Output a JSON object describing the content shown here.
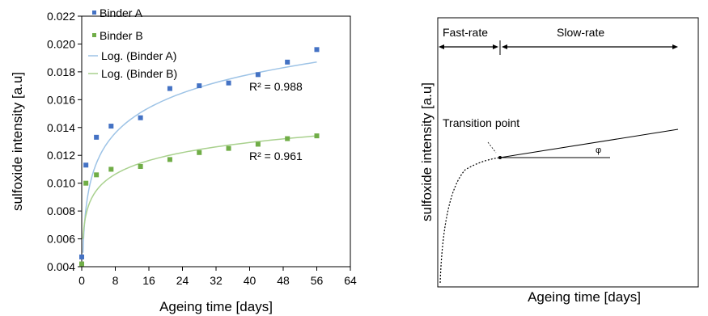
{
  "chart_data": [
    {
      "type": "scatter",
      "xlabel": "Ageing time [days]",
      "ylabel": "sulfoxide intensity [a.u]",
      "xlim": [
        0,
        64
      ],
      "ylim": [
        0.004,
        0.022
      ],
      "xticks": [
        "0",
        "8",
        "16",
        "24",
        "32",
        "40",
        "48",
        "56",
        "64"
      ],
      "yticks": [
        "0.004",
        "0.006",
        "0.008",
        "0.010",
        "0.012",
        "0.014",
        "0.016",
        "0.018",
        "0.020",
        "0.022"
      ],
      "grid": false,
      "legend_position": "top-left",
      "series": [
        {
          "name": "Binder A",
          "color": "#4472c4",
          "marker": "square",
          "x": [
            0,
            1,
            3.5,
            7,
            14,
            21,
            28,
            35,
            42,
            49,
            56
          ],
          "y": [
            0.0047,
            0.0113,
            0.0133,
            0.0141,
            0.0147,
            0.0168,
            0.017,
            0.0172,
            0.0178,
            0.0187,
            0.0196
          ]
        },
        {
          "name": "Binder B",
          "color": "#70ad47",
          "marker": "square",
          "x": [
            0,
            1,
            3.5,
            7,
            14,
            21,
            28,
            35,
            42,
            49,
            56
          ],
          "y": [
            0.0042,
            0.01,
            0.0106,
            0.011,
            0.0112,
            0.0117,
            0.0122,
            0.0125,
            0.0128,
            0.0132,
            0.0134
          ]
        }
      ],
      "trendlines": [
        {
          "name": "Log. (Binder A)",
          "color": "#9dc3e6",
          "r2_label": "R² = 0.988",
          "x_start": 0.3,
          "x_end": 56,
          "y_start": 0.005,
          "y_end": 0.0187
        },
        {
          "name": "Log. (Binder B)",
          "color": "#a9d18e",
          "r2_label": "R² = 0.961",
          "x_start": 0.3,
          "x_end": 56,
          "y_start": 0.006,
          "y_end": 0.0134
        }
      ]
    },
    {
      "type": "line",
      "xlabel": "Ageing time [days]",
      "ylabel": "sulfoxide intensity [a.u]",
      "regions": [
        "Fast-rate",
        "Slow-rate"
      ],
      "annotations": [
        "Transition point",
        "φ"
      ]
    }
  ]
}
